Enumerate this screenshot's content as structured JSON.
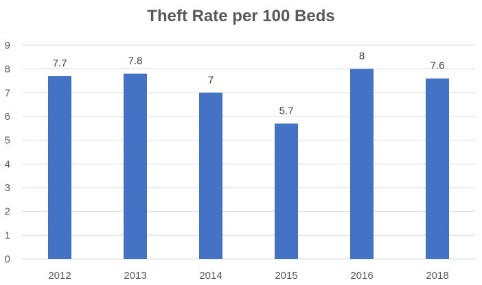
{
  "chart_data": {
    "type": "bar",
    "title": "Theft Rate per 100 Beds",
    "xlabel": "",
    "ylabel": "",
    "categories": [
      "2012",
      "2013",
      "2014",
      "2015",
      "2016",
      "2018"
    ],
    "values": [
      7.7,
      7.8,
      7,
      5.7,
      8,
      7.6
    ],
    "data_labels": [
      "7.7",
      "7.8",
      "7",
      "5.7",
      "8",
      "7.6"
    ],
    "ylim": [
      0,
      9
    ],
    "yticks": [
      "0",
      "1",
      "2",
      "3",
      "4",
      "5",
      "6",
      "7",
      "8",
      "9"
    ],
    "grid": true,
    "legend": "none",
    "bar_color": "#4472C4",
    "grid_color": "#D9D9D9"
  }
}
